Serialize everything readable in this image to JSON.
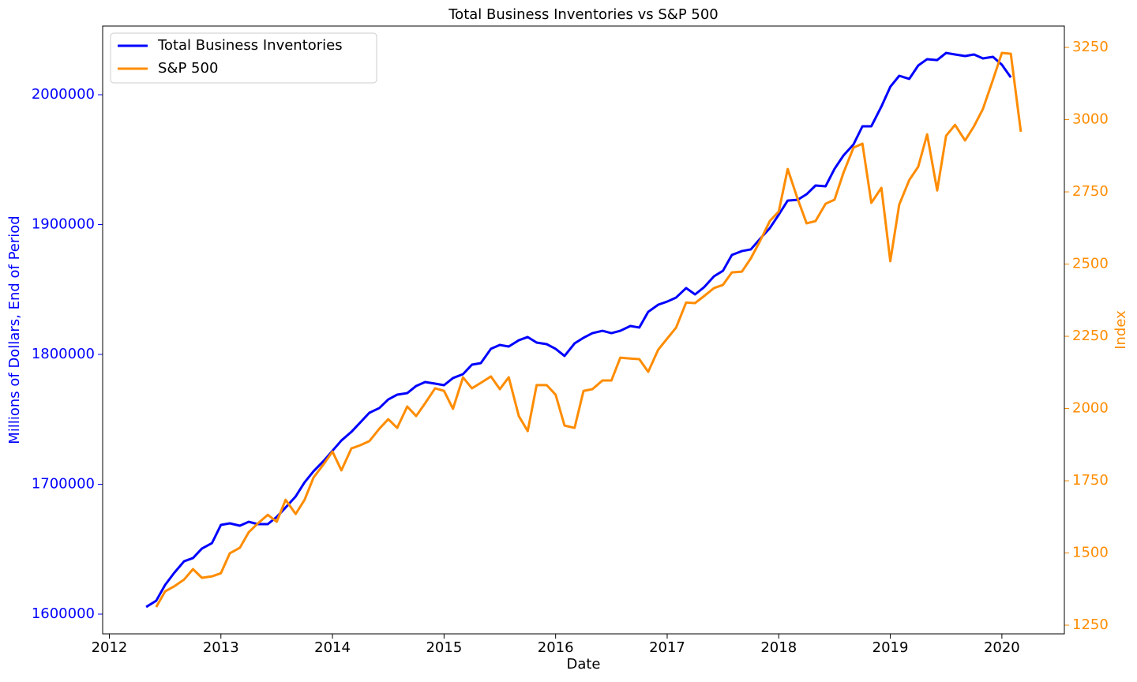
{
  "chart_data": {
    "type": "line",
    "title": "Total Business Inventories vs S&P 500",
    "x_label": "Date",
    "y_label": "Millions of Dollars, End of Period",
    "y2_label": "Index",
    "xlim": [
      2011.94,
      2020.56
    ],
    "xticks": [
      2012,
      2013,
      2014,
      2015,
      2016,
      2017,
      2018,
      2019,
      2020
    ],
    "ylim": [
      1584800,
      2052900
    ],
    "yticks": [
      1600000,
      1700000,
      1800000,
      1900000,
      2000000
    ],
    "y_color": "#0000ff",
    "y2lim": [
      1220,
      3324
    ],
    "y2ticks": [
      1250,
      1500,
      1750,
      2000,
      2250,
      2500,
      2750,
      3000,
      3250
    ],
    "y2_color": "#ff8c00",
    "legend": "upper-left",
    "series": [
      {
        "name": "Total Business Inventories",
        "color": "#0000ff",
        "axis": "y",
        "x": [
          2012.33,
          2012.42,
          2012.5,
          2012.58,
          2012.67,
          2012.75,
          2012.83,
          2012.92,
          2013.0,
          2013.08,
          2013.17,
          2013.25,
          2013.33,
          2013.42,
          2013.5,
          2013.58,
          2013.67,
          2013.75,
          2013.83,
          2013.92,
          2014.0,
          2014.08,
          2014.17,
          2014.25,
          2014.33,
          2014.42,
          2014.5,
          2014.58,
          2014.67,
          2014.75,
          2014.83,
          2014.92,
          2015.0,
          2015.08,
          2015.17,
          2015.25,
          2015.33,
          2015.42,
          2015.5,
          2015.58,
          2015.67,
          2015.75,
          2015.83,
          2015.92,
          2016.0,
          2016.08,
          2016.17,
          2016.25,
          2016.33,
          2016.42,
          2016.5,
          2016.58,
          2016.67,
          2016.75,
          2016.83,
          2016.92,
          2017.0,
          2017.08,
          2017.17,
          2017.25,
          2017.33,
          2017.42,
          2017.5,
          2017.58,
          2017.67,
          2017.75,
          2017.83,
          2017.92,
          2018.0,
          2018.08,
          2018.17,
          2018.25,
          2018.33,
          2018.42,
          2018.5,
          2018.58,
          2018.67,
          2018.75,
          2018.83,
          2018.92,
          2019.0,
          2019.08,
          2019.17,
          2019.25,
          2019.33,
          2019.42,
          2019.5,
          2019.58,
          2019.67,
          2019.75,
          2019.83,
          2019.92,
          2020.0,
          2020.08
        ],
        "values": [
          1605500,
          1610300,
          1622500,
          1631600,
          1640700,
          1643200,
          1650500,
          1654700,
          1668700,
          1669900,
          1668100,
          1671100,
          1669300,
          1669300,
          1674800,
          1682100,
          1690600,
          1701500,
          1710000,
          1717900,
          1725800,
          1733700,
          1740400,
          1747700,
          1755000,
          1758700,
          1765300,
          1769000,
          1770200,
          1775700,
          1778700,
          1777500,
          1776300,
          1781800,
          1784800,
          1792100,
          1793300,
          1804300,
          1807300,
          1806100,
          1810900,
          1813400,
          1809100,
          1807900,
          1804300,
          1798800,
          1808500,
          1812800,
          1816400,
          1818200,
          1816400,
          1818200,
          1821900,
          1820700,
          1832800,
          1838300,
          1840700,
          1843800,
          1851100,
          1846200,
          1851700,
          1860200,
          1864400,
          1876600,
          1879600,
          1880900,
          1888800,
          1897300,
          1907600,
          1918500,
          1919100,
          1923400,
          1930100,
          1929500,
          1942900,
          1953200,
          1961700,
          1975700,
          1975700,
          1990900,
          2006100,
          2014600,
          2012200,
          2022500,
          2027400,
          2026700,
          2032200,
          2031000,
          2029800,
          2031000,
          2028000,
          2029200,
          2023100,
          2013400
        ]
      },
      {
        "name": "S&P 500",
        "color": "#ff8c00",
        "axis": "y2",
        "x": [
          2012.42,
          2012.5,
          2012.58,
          2012.67,
          2012.75,
          2012.83,
          2012.92,
          2013.0,
          2013.08,
          2013.17,
          2013.25,
          2013.33,
          2013.42,
          2013.5,
          2013.58,
          2013.67,
          2013.75,
          2013.83,
          2013.92,
          2014.0,
          2014.08,
          2014.17,
          2014.25,
          2014.33,
          2014.42,
          2014.5,
          2014.58,
          2014.67,
          2014.75,
          2014.83,
          2014.92,
          2015.0,
          2015.08,
          2015.17,
          2015.25,
          2015.33,
          2015.42,
          2015.5,
          2015.58,
          2015.67,
          2015.75,
          2015.83,
          2015.92,
          2016.0,
          2016.08,
          2016.17,
          2016.25,
          2016.33,
          2016.42,
          2016.5,
          2016.58,
          2016.67,
          2016.75,
          2016.83,
          2016.92,
          2017.0,
          2017.08,
          2017.17,
          2017.25,
          2017.33,
          2017.42,
          2017.5,
          2017.58,
          2017.67,
          2017.75,
          2017.83,
          2017.92,
          2018.0,
          2018.08,
          2018.17,
          2018.25,
          2018.33,
          2018.42,
          2018.5,
          2018.58,
          2018.67,
          2018.75,
          2018.83,
          2018.92,
          2019.0,
          2019.08,
          2019.17,
          2019.25,
          2019.33,
          2019.42,
          2019.5,
          2019.58,
          2019.67,
          2019.75,
          2019.83,
          2019.92,
          2020.0,
          2020.08,
          2020.17
        ],
        "values": [
          1313,
          1367,
          1384,
          1408,
          1444,
          1414,
          1419,
          1430,
          1499,
          1518,
          1572,
          1602,
          1632,
          1608,
          1684,
          1635,
          1684,
          1761,
          1807,
          1851,
          1786,
          1862,
          1873,
          1887,
          1930,
          1963,
          1933,
          2007,
          1974,
          2018,
          2070,
          2061,
          1999,
          2108,
          2070,
          2089,
          2111,
          2067,
          2108,
          1974,
          1922,
          2081,
          2081,
          2048,
          1941,
          1933,
          2061,
          2067,
          2097,
          2097,
          2176,
          2173,
          2171,
          2127,
          2204,
          2242,
          2280,
          2367,
          2365,
          2389,
          2417,
          2428,
          2471,
          2474,
          2520,
          2578,
          2649,
          2682,
          2829,
          2725,
          2641,
          2649,
          2709,
          2723,
          2816,
          2903,
          2917,
          2712,
          2764,
          2510,
          2706,
          2791,
          2837,
          2949,
          2755,
          2944,
          2982,
          2928,
          2977,
          3037,
          3138,
          3231,
          3228,
          2958
        ]
      }
    ]
  }
}
